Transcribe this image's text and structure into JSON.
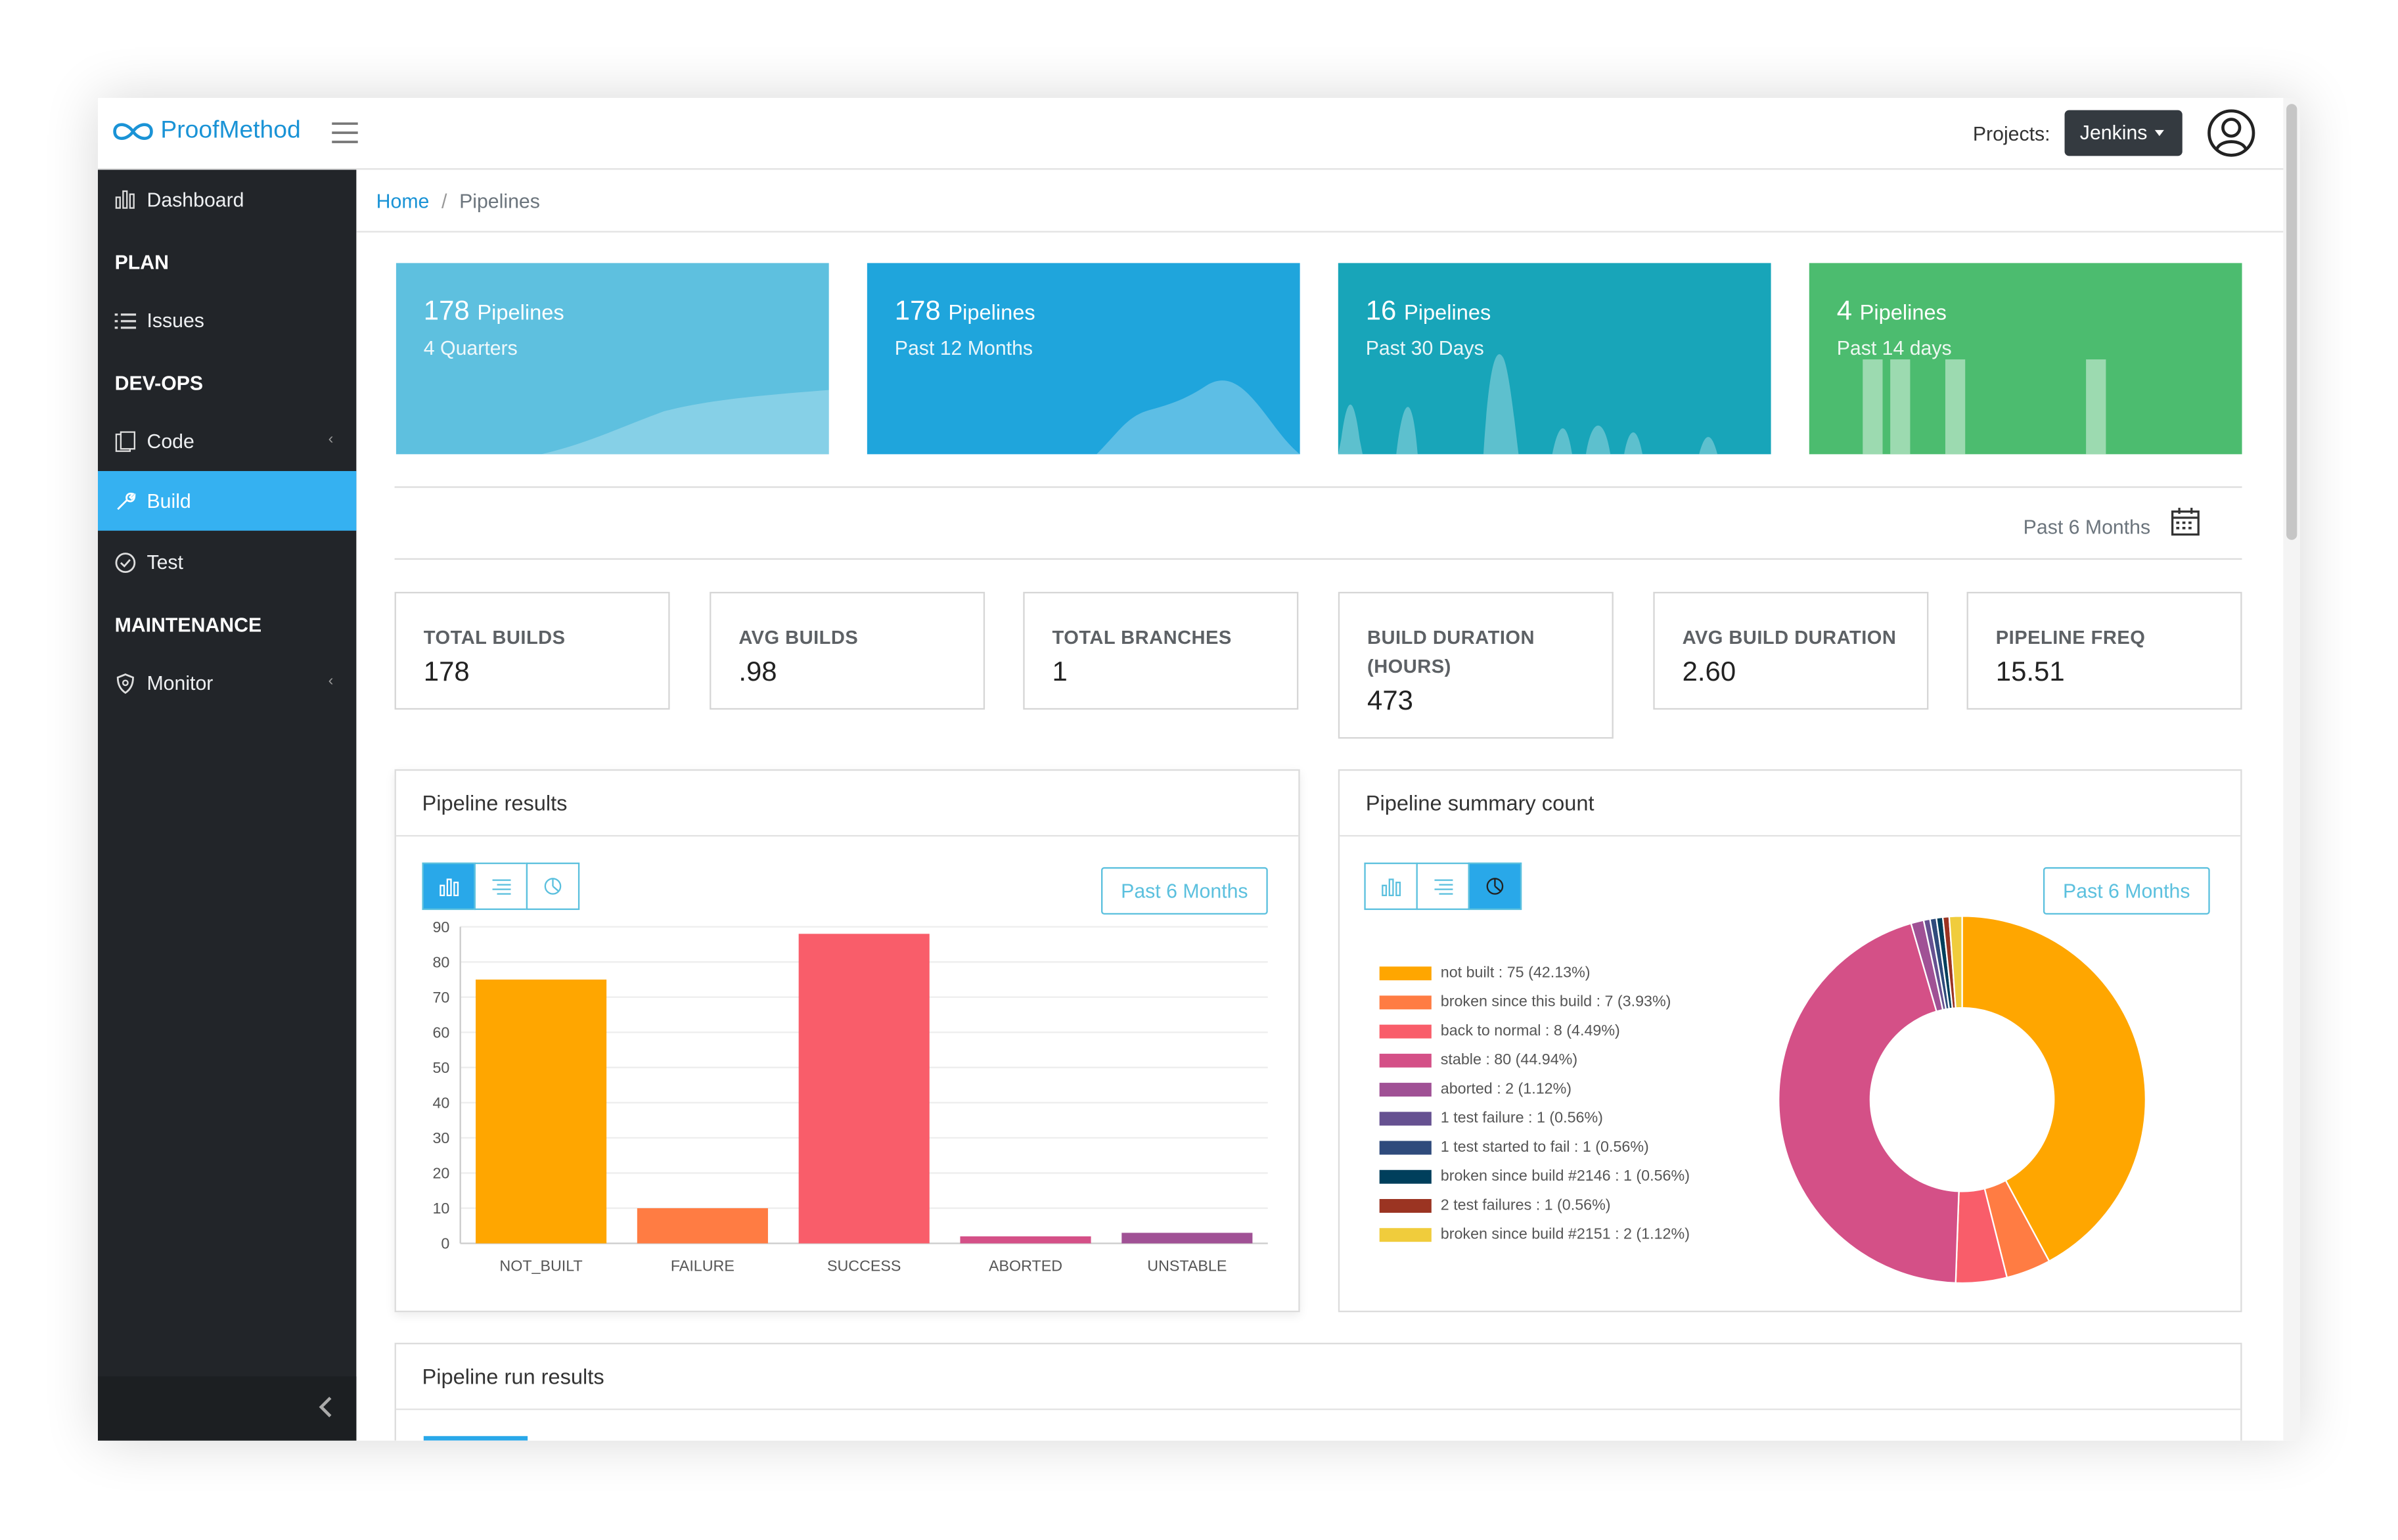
{
  "app": {
    "logo_text": "ProofMethod",
    "projects_label": "Projects:",
    "project_selected": "Jenkins"
  },
  "sidebar": {
    "dashboard": "Dashboard",
    "plan_header": "PLAN",
    "issues": "Issues",
    "devops_header": "DEV-OPS",
    "code": "Code",
    "build": "Build",
    "test": "Test",
    "maintenance_header": "MAINTENANCE",
    "monitor": "Monitor"
  },
  "breadcrumb": {
    "home": "Home",
    "separator": "/",
    "current": "Pipelines"
  },
  "summary_cards": [
    {
      "count": "178",
      "unit": "Pipelines",
      "period": "4 Quarters",
      "color": "#5ec0df"
    },
    {
      "count": "178",
      "unit": "Pipelines",
      "period": "Past 12 Months",
      "color": "#1fa5dc"
    },
    {
      "count": "16",
      "unit": "Pipelines",
      "period": "Past 30 Days",
      "color": "#18a5b9"
    },
    {
      "count": "4",
      "unit": "Pipelines",
      "period": "Past 14 days",
      "color": "#4cbc6f"
    }
  ],
  "filter_period": "Past 6 Months",
  "stats": [
    {
      "label": "TOTAL BUILDS",
      "value": "178"
    },
    {
      "label": "AVG BUILDS",
      "value": ".98"
    },
    {
      "label": "TOTAL BRANCHES",
      "value": "1"
    },
    {
      "label": "BUILD DURATION (HOURS)",
      "value": "473"
    },
    {
      "label": "AVG BUILD DURATION",
      "value": "2.60"
    },
    {
      "label": "PIPELINE FREQ",
      "value": "15.51"
    }
  ],
  "pipeline_results": {
    "title": "Pipeline results",
    "period_button": "Past 6 Months"
  },
  "pipeline_summary": {
    "title": "Pipeline summary count",
    "period_button": "Past 6 Months"
  },
  "pipeline_run_results": {
    "title": "Pipeline run results"
  },
  "chart_data": [
    {
      "type": "bar",
      "categories": [
        "NOT_BUILT",
        "FAILURE",
        "SUCCESS",
        "ABORTED",
        "UNSTABLE"
      ],
      "values": [
        75,
        10,
        88,
        2,
        3
      ],
      "colors": [
        "#ffa600",
        "#ff7c43",
        "#f95d6a",
        "#d45087",
        "#a05195"
      ],
      "yticks": [
        "0",
        "10",
        "20",
        "30",
        "40",
        "50",
        "60",
        "70",
        "80",
        "90"
      ],
      "ylim": [
        0,
        90
      ],
      "grid": true
    },
    {
      "type": "pie",
      "style": "donut",
      "legend_position": "left",
      "slices": [
        {
          "label": "not built : 75 (42.13%)",
          "value": 75,
          "color": "#ffa600"
        },
        {
          "label": "broken since this build : 7 (3.93%)",
          "value": 7,
          "color": "#ff7c43"
        },
        {
          "label": "back to normal : 8 (4.49%)",
          "value": 8,
          "color": "#f95d6a"
        },
        {
          "label": "stable : 80 (44.94%)",
          "value": 80,
          "color": "#d45087"
        },
        {
          "label": "aborted : 2 (1.12%)",
          "value": 2,
          "color": "#a05195"
        },
        {
          "label": "1 test failure : 1 (0.56%)",
          "value": 1,
          "color": "#665191"
        },
        {
          "label": "1 test  started to fail : 1 (0.56%)",
          "value": 1,
          "color": "#2f4b7c"
        },
        {
          "label": "broken since build #2146 : 1 (0.56%)",
          "value": 1,
          "color": "#003f5c"
        },
        {
          "label": "2 test failures : 1 (0.56%)",
          "value": 1,
          "color": "#9b3422"
        },
        {
          "label": "broken since build #2151 : 2 (1.12%)",
          "value": 2,
          "color": "#f0cc3c"
        }
      ]
    }
  ]
}
